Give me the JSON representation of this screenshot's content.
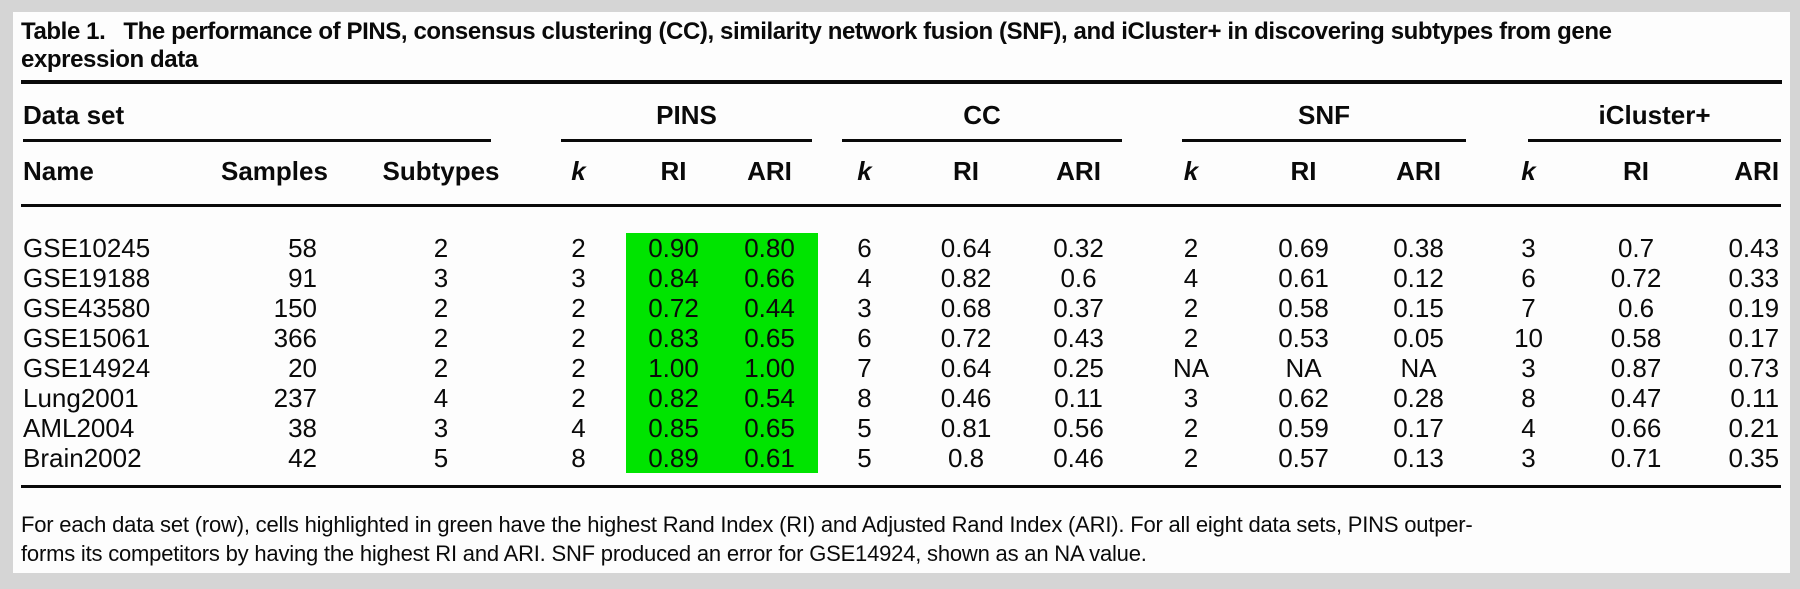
{
  "title": {
    "label": "Table 1.",
    "line1": "The performance of PINS, consensus clustering (CC), similarity network fusion (SNF), and iCluster+ in discovering subtypes from gene",
    "line2": "expression data"
  },
  "table": {
    "groups": [
      {
        "label": "Data set",
        "span": 3
      },
      {
        "label": "PINS",
        "span": 3
      },
      {
        "label": "CC",
        "span": 3
      },
      {
        "label": "SNF",
        "span": 3
      },
      {
        "label": "iCluster+",
        "span": 3
      }
    ],
    "columns": [
      "Name",
      "Samples",
      "Subtypes",
      "k",
      "RI",
      "ARI",
      "k",
      "RI",
      "ARI",
      "k",
      "RI",
      "ARI",
      "k",
      "RI",
      "ARI"
    ],
    "italic_columns": [
      3,
      6,
      9,
      12
    ],
    "highlight_columns": [
      4,
      5
    ],
    "highlight_color": "#00e400",
    "rows": [
      {
        "cells": [
          "GSE10245",
          "58",
          "2",
          "2",
          "0.90",
          "0.80",
          "6",
          "0.64",
          "0.32",
          "2",
          "0.69",
          "0.38",
          "3",
          "0.7",
          "0.43"
        ]
      },
      {
        "cells": [
          "GSE19188",
          "91",
          "3",
          "3",
          "0.84",
          "0.66",
          "4",
          "0.82",
          "0.6",
          "4",
          "0.61",
          "0.12",
          "6",
          "0.72",
          "0.33"
        ]
      },
      {
        "cells": [
          "GSE43580",
          "150",
          "2",
          "2",
          "0.72",
          "0.44",
          "3",
          "0.68",
          "0.37",
          "2",
          "0.58",
          "0.15",
          "7",
          "0.6",
          "0.19"
        ]
      },
      {
        "cells": [
          "GSE15061",
          "366",
          "2",
          "2",
          "0.83",
          "0.65",
          "6",
          "0.72",
          "0.43",
          "2",
          "0.53",
          "0.05",
          "10",
          "0.58",
          "0.17"
        ]
      },
      {
        "cells": [
          "GSE14924",
          "20",
          "2",
          "2",
          "1.00",
          "1.00",
          "7",
          "0.64",
          "0.25",
          "NA",
          "NA",
          "NA",
          "3",
          "0.87",
          "0.73"
        ]
      },
      {
        "cells": [
          "Lung2001",
          "237",
          "4",
          "2",
          "0.82",
          "0.54",
          "8",
          "0.46",
          "0.11",
          "3",
          "0.62",
          "0.28",
          "8",
          "0.47",
          "0.11"
        ]
      },
      {
        "cells": [
          "AML2004",
          "38",
          "3",
          "4",
          "0.85",
          "0.65",
          "5",
          "0.81",
          "0.56",
          "2",
          "0.59",
          "0.17",
          "4",
          "0.66",
          "0.21"
        ]
      },
      {
        "cells": [
          "Brain2002",
          "42",
          "5",
          "8",
          "0.89",
          "0.61",
          "5",
          "0.8",
          "0.46",
          "2",
          "0.57",
          "0.13",
          "3",
          "0.71",
          "0.35"
        ]
      }
    ]
  },
  "footnote": {
    "line1": "For each data set (row), cells highlighted in green have the highest Rand Index (RI) and Adjusted Rand Index (ARI). For all eight data sets, PINS outper-",
    "line2": "forms its competitors by having the highest RI and ARI. SNF produced an error for GSE14924, shown as an NA value."
  }
}
